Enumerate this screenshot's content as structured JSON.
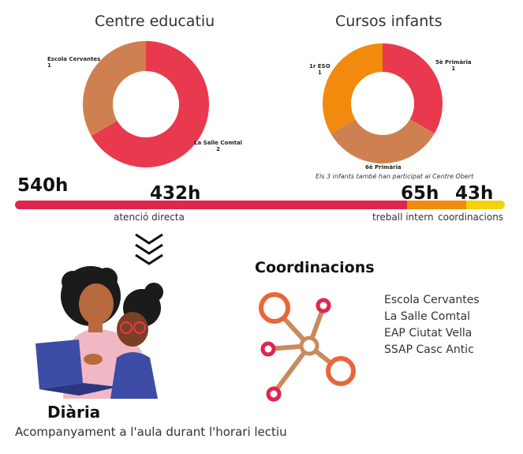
{
  "charts": [
    {
      "type": "pie",
      "title": "Centre educatiu",
      "categories": [
        "La Salle Comtal",
        "Escola Cervantes"
      ],
      "values": [
        2,
        1
      ],
      "colors": [
        "#e8394f",
        "#cf8050"
      ]
    },
    {
      "type": "pie",
      "title": "Cursos infants",
      "categories": [
        "5è Primària",
        "6è Primària",
        "1r ESO"
      ],
      "values": [
        1,
        1,
        1
      ],
      "colors": [
        "#e8394f",
        "#cf8050",
        "#f28a0d"
      ],
      "note": "Els 3 infants també han participat al Centre Obert"
    }
  ],
  "hours": {
    "total": "540h",
    "items": [
      {
        "value": "432h",
        "label": "atenció directa",
        "color": "#e0254f"
      },
      {
        "value": "65h",
        "label": "treball intern",
        "color": "#f28a0d"
      },
      {
        "value": "43h",
        "label": "coordinacions",
        "color": "#f5d20a"
      }
    ]
  },
  "coordinacions": {
    "title": "Coordinacions",
    "items": [
      "Escola Cervantes",
      "La Salle Comtal",
      "EAP Ciutat Vella",
      "SSAP Casc Antic"
    ]
  },
  "diaria": {
    "title": "Diària",
    "description": "Acompanyament a l'aula durant l'horari lectiu"
  },
  "icons": {
    "chevrons": "triple-chevron-down-icon",
    "network": "network-icon",
    "illustration": "mother-child-laptop-illustration"
  }
}
